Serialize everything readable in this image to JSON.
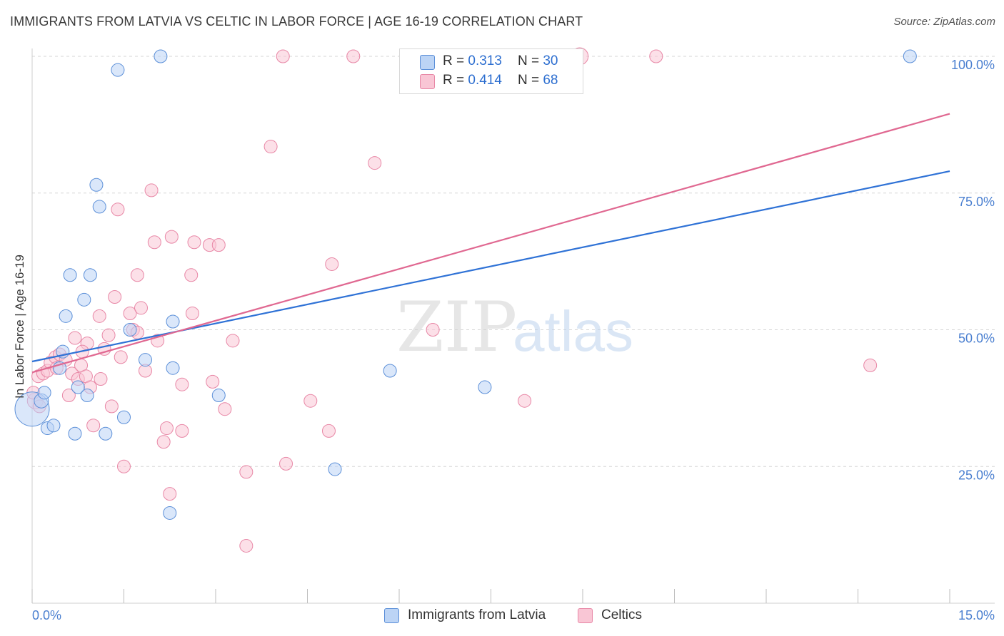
{
  "title": "IMMIGRANTS FROM LATVIA VS CELTIC IN LABOR FORCE | AGE 16-19 CORRELATION CHART",
  "source": "Source: ZipAtlas.com",
  "watermark": {
    "zip": "ZIP",
    "atlas": "atlas"
  },
  "colors": {
    "blue_fill": "#bcd4f5",
    "blue_stroke": "#5b8fd8",
    "blue_line": "#2f72d6",
    "pink_fill": "#f9c6d5",
    "pink_stroke": "#e887a6",
    "pink_line": "#e06891",
    "grid": "#d5d5d5",
    "tick_text": "#4a7fd0"
  },
  "legend": {
    "r_label": "R =",
    "n_label": "N =",
    "blue": {
      "r": "0.313",
      "n": "30"
    },
    "pink": {
      "r": "0.414",
      "n": "68"
    }
  },
  "chart_data": {
    "type": "scatter",
    "xlabel": "",
    "ylabel": "In Labor Force | Age 16-19",
    "xlim": [
      0,
      15
    ],
    "ylim": [
      0,
      100
    ],
    "x_tick_labels": [
      "0.0%",
      "15.0%"
    ],
    "y_ticks": [
      25,
      50,
      75,
      100
    ],
    "y_tick_labels": [
      "25.0%",
      "50.0%",
      "75.0%",
      "100.0%"
    ],
    "grid": true,
    "legend_position": "top-center",
    "series": [
      {
        "name": "Immigrants from Latvia",
        "color": "blue",
        "trend": {
          "x": [
            0,
            15
          ],
          "y": [
            44.2,
            79.0
          ]
        },
        "points": [
          [
            0.0,
            35.5,
            24
          ],
          [
            0.15,
            37.0,
            10
          ],
          [
            0.2,
            38.5,
            9
          ],
          [
            0.25,
            32.0,
            9
          ],
          [
            0.35,
            32.5,
            9
          ],
          [
            0.45,
            43.0,
            9
          ],
          [
            0.5,
            46.0,
            9
          ],
          [
            0.55,
            52.5,
            9
          ],
          [
            0.62,
            60.0,
            9
          ],
          [
            0.7,
            31.0,
            9
          ],
          [
            0.75,
            39.5,
            9
          ],
          [
            0.85,
            55.5,
            9
          ],
          [
            0.9,
            38.0,
            9
          ],
          [
            0.95,
            60.0,
            9
          ],
          [
            1.05,
            76.5,
            9
          ],
          [
            1.1,
            72.5,
            9
          ],
          [
            1.2,
            31.0,
            9
          ],
          [
            1.4,
            97.5,
            9
          ],
          [
            1.5,
            34.0,
            9
          ],
          [
            1.6,
            50.0,
            9
          ],
          [
            1.85,
            44.5,
            9
          ],
          [
            2.1,
            100.0,
            9
          ],
          [
            2.3,
            43.0,
            9
          ],
          [
            2.25,
            16.5,
            9
          ],
          [
            2.3,
            51.5,
            9
          ],
          [
            3.05,
            38.0,
            9
          ],
          [
            4.95,
            24.5,
            9
          ],
          [
            5.85,
            42.5,
            9
          ],
          [
            7.4,
            39.5,
            9
          ],
          [
            14.35,
            100.0,
            9
          ]
        ]
      },
      {
        "name": "Celtics",
        "color": "pink",
        "trend": {
          "x": [
            0,
            15
          ],
          "y": [
            42.2,
            89.5
          ]
        },
        "points": [
          [
            0.05,
            37.0,
            11
          ],
          [
            0.1,
            41.5,
            9
          ],
          [
            0.18,
            42.0,
            9
          ],
          [
            0.25,
            42.5,
            9
          ],
          [
            0.3,
            44.0,
            9
          ],
          [
            0.38,
            45.0,
            9
          ],
          [
            0.45,
            45.5,
            9
          ],
          [
            0.55,
            44.5,
            9
          ],
          [
            0.6,
            38.0,
            9
          ],
          [
            0.65,
            42.0,
            9
          ],
          [
            0.7,
            48.5,
            9
          ],
          [
            0.75,
            41.0,
            9
          ],
          [
            0.8,
            43.5,
            9
          ],
          [
            0.88,
            41.5,
            9
          ],
          [
            0.9,
            47.5,
            9
          ],
          [
            0.95,
            39.5,
            9
          ],
          [
            1.0,
            32.5,
            9
          ],
          [
            1.1,
            52.5,
            9
          ],
          [
            1.12,
            41.0,
            9
          ],
          [
            1.18,
            46.5,
            9
          ],
          [
            1.25,
            49.0,
            9
          ],
          [
            1.3,
            36.0,
            9
          ],
          [
            1.35,
            56.0,
            9
          ],
          [
            1.4,
            72.0,
            9
          ],
          [
            1.45,
            45.0,
            9
          ],
          [
            1.5,
            25.0,
            9
          ],
          [
            1.6,
            53.0,
            9
          ],
          [
            1.65,
            50.0,
            9
          ],
          [
            1.72,
            49.5,
            9
          ],
          [
            1.72,
            60.0,
            9
          ],
          [
            1.78,
            54.0,
            9
          ],
          [
            1.85,
            42.5,
            9
          ],
          [
            1.95,
            75.5,
            9
          ],
          [
            2.0,
            66.0,
            9
          ],
          [
            2.05,
            48.0,
            9
          ],
          [
            2.15,
            29.5,
            9
          ],
          [
            2.2,
            32.0,
            9
          ],
          [
            2.25,
            20.0,
            9
          ],
          [
            2.28,
            67.0,
            9
          ],
          [
            2.45,
            31.5,
            9
          ],
          [
            2.45,
            40.0,
            9
          ],
          [
            2.6,
            60.0,
            9
          ],
          [
            2.62,
            53.0,
            9
          ],
          [
            2.65,
            66.0,
            9
          ],
          [
            2.9,
            65.5,
            9
          ],
          [
            2.95,
            40.5,
            9
          ],
          [
            3.05,
            65.5,
            9
          ],
          [
            3.15,
            35.5,
            9
          ],
          [
            3.28,
            48.0,
            9
          ],
          [
            3.5,
            10.5,
            9
          ],
          [
            3.5,
            24.0,
            9
          ],
          [
            3.9,
            83.5,
            9
          ],
          [
            4.1,
            100.0,
            9
          ],
          [
            4.15,
            25.5,
            9
          ],
          [
            4.55,
            37.0,
            9
          ],
          [
            4.85,
            31.5,
            9
          ],
          [
            4.9,
            62.0,
            9
          ],
          [
            5.25,
            100.0,
            9
          ],
          [
            5.6,
            80.5,
            9
          ],
          [
            6.55,
            50.0,
            9
          ],
          [
            8.05,
            37.0,
            9
          ],
          [
            8.95,
            100.0,
            12
          ],
          [
            10.2,
            100.0,
            9
          ],
          [
            13.7,
            43.5,
            9
          ],
          [
            0.02,
            38.5,
            9
          ],
          [
            0.12,
            36.0,
            9
          ],
          [
            0.4,
            43.0,
            9
          ],
          [
            0.82,
            46.0,
            9
          ]
        ]
      }
    ]
  }
}
